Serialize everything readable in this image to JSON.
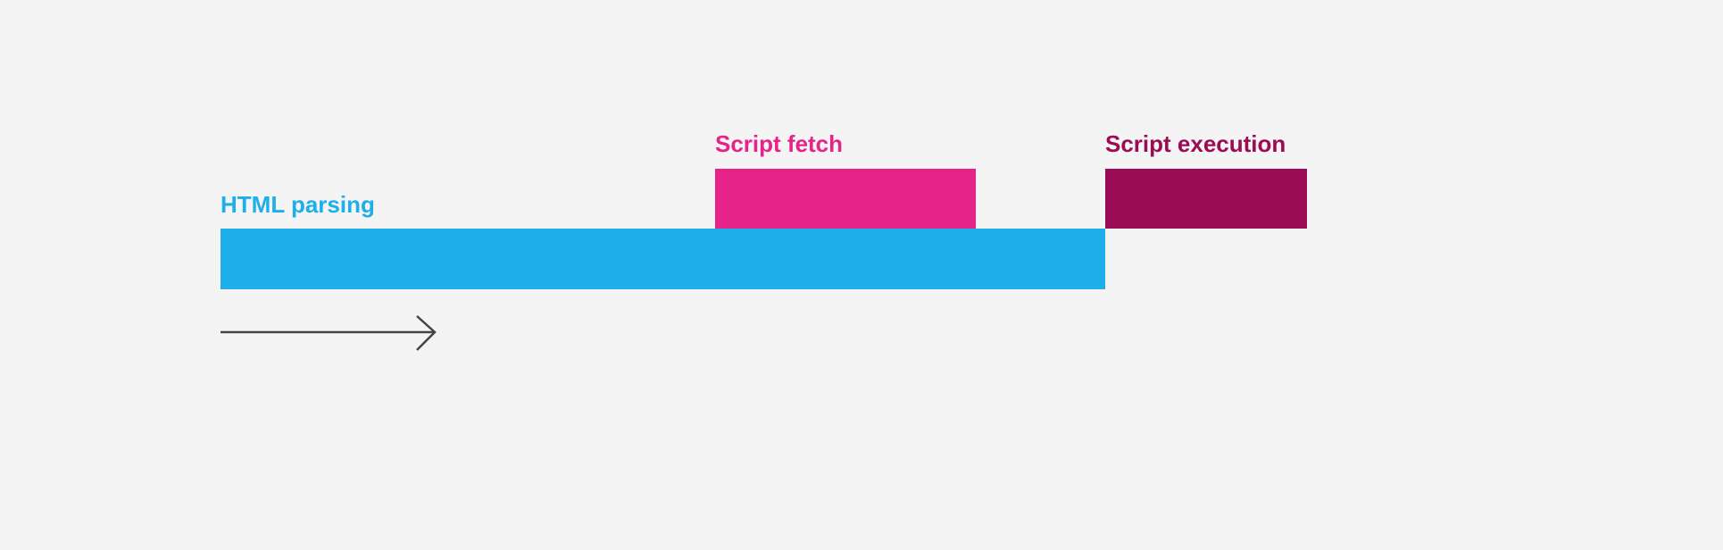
{
  "phases": {
    "html_parsing": {
      "label": "HTML parsing",
      "color": "#1eaeea"
    },
    "script_fetch": {
      "label": "Script fetch",
      "color": "#e52388"
    },
    "script_execution": {
      "label": "Script execution",
      "color": "#9a0c56"
    }
  },
  "arrow": {
    "icon": "right-arrow-icon",
    "color": "#444444"
  }
}
